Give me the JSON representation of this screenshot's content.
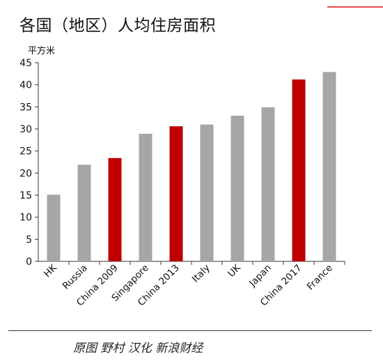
{
  "chart_data": {
    "type": "bar",
    "title": "各国（地区）人均住房面积",
    "ylabel": "平方米",
    "ylim": [
      0,
      45
    ],
    "yticks": [
      0,
      5,
      10,
      15,
      20,
      25,
      30,
      35,
      40,
      45
    ],
    "grid": false,
    "categories": [
      "HK",
      "Russia",
      "China 2009",
      "Singapore",
      "China 2013",
      "Italy",
      "UK",
      "Japan",
      "China 2017",
      "France"
    ],
    "values": [
      15.1,
      21.9,
      23.4,
      28.9,
      30.6,
      31.0,
      33.0,
      34.9,
      41.2,
      42.9
    ],
    "highlight": [
      "China 2009",
      "China 2013",
      "China 2017"
    ],
    "colors": {
      "default": "#a6a6a6",
      "highlight": "#c00000"
    }
  },
  "caption": "原图 野村  汉化 新浪财经"
}
